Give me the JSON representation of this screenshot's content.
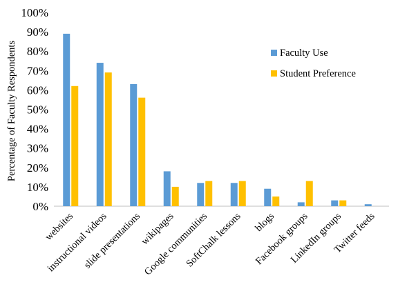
{
  "chart_data": {
    "type": "bar",
    "title": "",
    "xlabel": "",
    "ylabel": "Percentage of Faculty Respondents",
    "ylim": [
      0,
      100
    ],
    "yticks": [
      "0%",
      "10%",
      "20%",
      "30%",
      "40%",
      "50%",
      "60%",
      "70%",
      "80%",
      "90%",
      "100%"
    ],
    "categories": [
      "websites",
      "instructional videos",
      "slide presentations",
      "wikipages",
      "Google communities",
      "SoftChalk lessons",
      "blogs",
      "Facebook groups",
      "LinkedIn groups",
      "Twitter feeds"
    ],
    "series": [
      {
        "name": "Faculty Use",
        "color": "#5B9BD5",
        "values": [
          89,
          74,
          63,
          18,
          12,
          12,
          9,
          2,
          3,
          1
        ]
      },
      {
        "name": "Student Preference",
        "color": "#FFC000",
        "values": [
          62,
          69,
          56,
          10,
          13,
          13,
          5,
          13,
          3,
          0
        ]
      }
    ],
    "grid": false,
    "legend_position": "top-right"
  }
}
